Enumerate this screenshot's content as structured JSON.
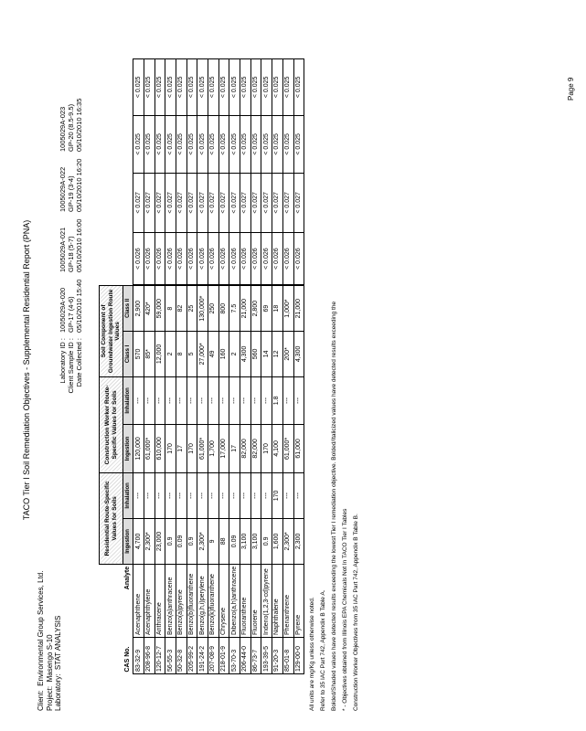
{
  "title": "TACO Tier I Soil Remediation Objectives - Supplemental Residential Report (PNA)",
  "client": {
    "client_label": "Client:",
    "client": "Environmental Group Services, Ltd.",
    "project_label": "Project:",
    "project": "Masengo S-10",
    "laboratory_label": "Laboratory:",
    "laboratory": "STAT ANALYSIS"
  },
  "sample_labels": [
    "Laboratory ID :",
    "Client Sample ID :",
    "Date Collected :"
  ],
  "samples": [
    {
      "lab_id": "1005029A-020",
      "client_id": "GP-17 (4-6)",
      "date": "05/10/2010 15:40"
    },
    {
      "lab_id": "1005029A-021",
      "client_id": "GP-18 (5-7)",
      "date": "05/10/2010 16:00"
    },
    {
      "lab_id": "1005029A-022",
      "client_id": "GP-19 (3-4)",
      "date": "05/10/2010 16:20"
    },
    {
      "lab_id": "1005029A-023",
      "client_id": "GP-20 (8.5-9.5)",
      "date": "05/10/2010 16:35"
    }
  ],
  "groups": [
    {
      "label": "Residential Route-Specific Values for Soils",
      "sub": [
        "Ingestion",
        "Inhalation"
      ]
    },
    {
      "label": "Construction Worker Route-Specific Values for Soils",
      "sub": [
        "Ingestion",
        "Inhalation"
      ]
    },
    {
      "label": "Soil Component of Groundwater Ingestion Route Values",
      "sub": [
        "Class I",
        "Class II"
      ]
    }
  ],
  "columns": {
    "cas": "CAS No.",
    "analyte": "Analyte"
  },
  "rows": [
    {
      "cas": "83-32-9",
      "analyte": "Acenaphthene",
      "obj": [
        "4,700",
        "---",
        "120,000",
        "---",
        "570",
        "2,900"
      ],
      "results": [
        "< 0.026",
        "< 0.027",
        "< 0.025",
        "< 0.025"
      ]
    },
    {
      "cas": "208-96-8",
      "analyte": "Acenaphthylene",
      "obj": [
        "2,300*",
        "---",
        "61,000*",
        "---",
        "85*",
        "420*"
      ],
      "results": [
        "< 0.026",
        "< 0.027",
        "< 0.025",
        "< 0.025"
      ]
    },
    {
      "cas": "120-12-7",
      "analyte": "Anthracene",
      "obj": [
        "23,000",
        "---",
        "610,000",
        "---",
        "12,000",
        "59,000"
      ],
      "results": [
        "< 0.026",
        "< 0.027",
        "< 0.025",
        "< 0.025"
      ]
    },
    {
      "cas": "56-55-3",
      "analyte": "Benzo(a)anthracene",
      "obj": [
        "0.9",
        "---",
        "170",
        "---",
        "2",
        "8"
      ],
      "results": [
        "< 0.026",
        "< 0.027",
        "< 0.025",
        "< 0.025"
      ]
    },
    {
      "cas": "50-32-8",
      "analyte": "Benzo(a)pyrene",
      "obj": [
        "0.09",
        "---",
        "17",
        "---",
        "8",
        "82"
      ],
      "results": [
        "< 0.026",
        "< 0.027",
        "< 0.025",
        "< 0.025"
      ]
    },
    {
      "cas": "205-99-2",
      "analyte": "Benzo(b)fluoranthene",
      "obj": [
        "0.9",
        "---",
        "170",
        "---",
        "5",
        "25"
      ],
      "results": [
        "< 0.026",
        "< 0.027",
        "< 0.025",
        "< 0.025"
      ]
    },
    {
      "cas": "191-24-2",
      "analyte": "Benzo(g,h,i)perylene",
      "obj": [
        "2,300*",
        "---",
        "61,000*",
        "---",
        "27,000*",
        "130,000*"
      ],
      "results": [
        "< 0.026",
        "< 0.027",
        "< 0.025",
        "< 0.025"
      ]
    },
    {
      "cas": "207-08-9",
      "analyte": "Benzo(k)fluoranthene",
      "obj": [
        "9",
        "---",
        "1,700",
        "---",
        "49",
        "250"
      ],
      "results": [
        "< 0.026",
        "< 0.027",
        "< 0.025",
        "< 0.025"
      ]
    },
    {
      "cas": "218-01-9",
      "analyte": "Chrysene",
      "obj": [
        "88",
        "---",
        "17,000",
        "---",
        "160",
        "800"
      ],
      "results": [
        "< 0.026",
        "< 0.027",
        "< 0.025",
        "< 0.025"
      ]
    },
    {
      "cas": "53-70-3",
      "analyte": "Dibenzo(a,h)anthracene",
      "obj": [
        "0.09",
        "---",
        "17",
        "---",
        "2",
        "7.5"
      ],
      "results": [
        "< 0.026",
        "< 0.027",
        "< 0.025",
        "< 0.025"
      ]
    },
    {
      "cas": "206-44-0",
      "analyte": "Fluoranthene",
      "obj": [
        "3,100",
        "---",
        "82,000",
        "---",
        "4,300",
        "21,000"
      ],
      "results": [
        "< 0.026",
        "< 0.027",
        "< 0.025",
        "< 0.025"
      ]
    },
    {
      "cas": "86-73-7",
      "analyte": "Fluorene",
      "obj": [
        "3,100",
        "---",
        "82,000",
        "---",
        "560",
        "2,800"
      ],
      "results": [
        "< 0.026",
        "< 0.027",
        "< 0.025",
        "< 0.025"
      ]
    },
    {
      "cas": "193-39-5",
      "analyte": "Indeno(1,2,3-cd)pyrene",
      "obj": [
        "0.9",
        "---",
        "170",
        "---",
        "14",
        "69"
      ],
      "results": [
        "< 0.026",
        "< 0.027",
        "< 0.025",
        "< 0.025"
      ]
    },
    {
      "cas": "91-20-3",
      "analyte": "Naphthalene",
      "obj": [
        "1,600",
        "170",
        "4,100",
        "1.8",
        "12",
        "18"
      ],
      "results": [
        "< 0.026",
        "< 0.027",
        "< 0.025",
        "< 0.025"
      ]
    },
    {
      "cas": "85-01-8",
      "analyte": "Phenanthrene",
      "obj": [
        "2,300*",
        "---",
        "61,000*",
        "---",
        "200*",
        "1,000*"
      ],
      "results": [
        "< 0.026",
        "< 0.027",
        "< 0.025",
        "< 0.025"
      ]
    },
    {
      "cas": "129-00-0",
      "analyte": "Pyrene",
      "obj": [
        "2,300",
        "---",
        "61,000",
        "---",
        "4,300",
        "21,000"
      ],
      "results": [
        "< 0.026",
        "< 0.027",
        "< 0.025",
        "< 0.025"
      ]
    }
  ],
  "notes": [
    "All units are mg/Kg unless otherwise noted.",
    "Refer to 35 IAC Part 742, Appendix B Table A.",
    "Bolded/Shaded values have detected results exceeding the lowest Tier I remediation objective.  Bolded/Italicized values have detected results exceeding the",
    "* - Objectives obtained from Illinois EPA Chemicals Not In TACO Tier I Tables",
    "Construction Worker Objectives from 35 IAC Part 742, Appendix B Table B."
  ],
  "page_number": "Page 9"
}
